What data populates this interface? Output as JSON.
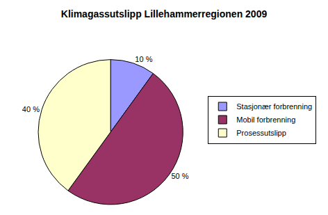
{
  "chart_data": {
    "type": "pie",
    "title": "Klimagassutslipp Lillehammerregionen 2009",
    "categories": [
      "Stasjonær forbrenning",
      "Mobil forbrenning",
      "Prosessutslipp"
    ],
    "values": [
      10,
      50,
      40
    ],
    "value_labels": [
      "10 %",
      "50 %",
      "40 %"
    ],
    "colors": [
      "#9999ff",
      "#993366",
      "#ffffcc"
    ],
    "data_labels": true,
    "legend": "right"
  }
}
